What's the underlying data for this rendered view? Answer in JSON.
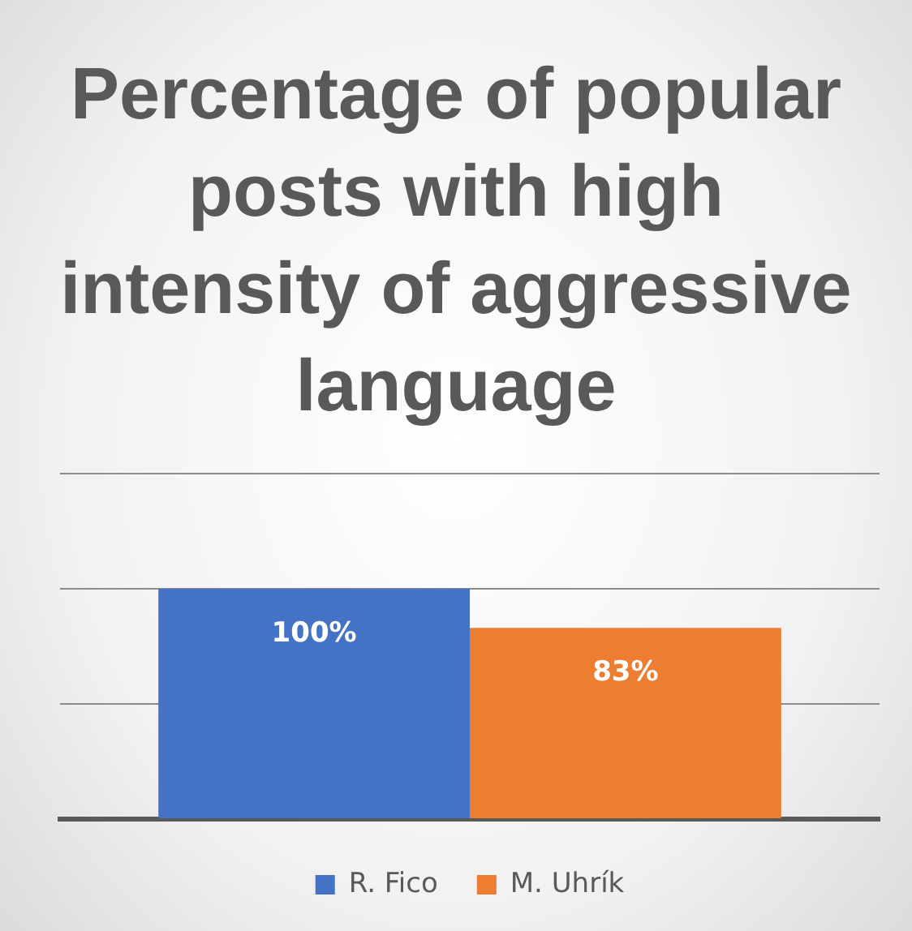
{
  "chart_data": {
    "type": "bar",
    "title": "Percentage of popular posts with high intensity of aggressive language",
    "categories": [
      null
    ],
    "series": [
      {
        "name": "R. Fico",
        "color": "#4472c4",
        "values": [
          100
        ],
        "value_labels": [
          "100%"
        ]
      },
      {
        "name": "M. Uhrík",
        "color": "#ed7d31",
        "values": [
          83
        ],
        "value_labels": [
          "83%"
        ]
      }
    ],
    "ylim": [
      0,
      150
    ],
    "yticks": [
      0,
      50,
      100,
      150
    ],
    "grid": "y",
    "tick_labels": false,
    "legend": "bottom"
  }
}
